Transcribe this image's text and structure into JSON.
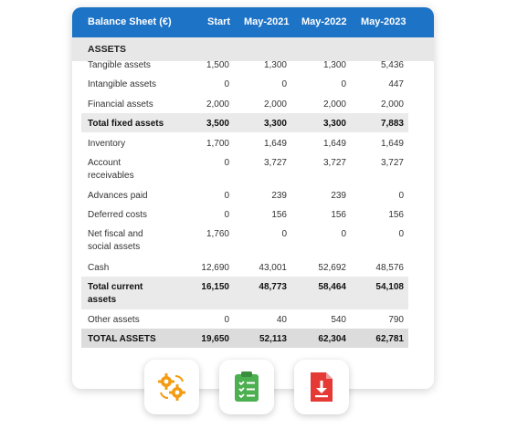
{
  "table": {
    "header": {
      "title": "Balance Sheet (€)",
      "columns": [
        "Start",
        "May-2021",
        "May-2022",
        "May-2023"
      ]
    },
    "section": "ASSETS",
    "rows": [
      {
        "label": "Tangible assets",
        "values": [
          "1,500",
          "1,300",
          "1,300",
          "5,436"
        ]
      },
      {
        "label": "Intangible assets",
        "values": [
          "0",
          "0",
          "0",
          "447"
        ]
      },
      {
        "label": "Financial assets",
        "values": [
          "2,000",
          "2,000",
          "2,000",
          "2,000"
        ]
      },
      {
        "label": "Total fixed assets",
        "values": [
          "3,500",
          "3,300",
          "3,300",
          "7,883"
        ]
      },
      {
        "label": "Inventory",
        "values": [
          "1,700",
          "1,649",
          "1,649",
          "1,649"
        ]
      },
      {
        "label": "Account receivables",
        "values": [
          "0",
          "3,727",
          "3,727",
          "3,727"
        ]
      },
      {
        "label": "Advances paid",
        "values": [
          "0",
          "239",
          "239",
          "0"
        ]
      },
      {
        "label": "Deferred costs",
        "values": [
          "0",
          "156",
          "156",
          "156"
        ]
      },
      {
        "label": "Net fiscal and social assets",
        "values": [
          "1,760",
          "0",
          "0",
          "0"
        ]
      },
      {
        "label": "Cash",
        "values": [
          "12,690",
          "43,001",
          "52,692",
          "48,576"
        ]
      },
      {
        "label": "Total current assets",
        "values": [
          "16,150",
          "48,773",
          "58,464",
          "54,108"
        ]
      },
      {
        "label": "Other assets",
        "values": [
          "0",
          "40",
          "540",
          "790"
        ]
      },
      {
        "label": "TOTAL ASSETS",
        "values": [
          "19,650",
          "52,113",
          "62,304",
          "62,781"
        ]
      }
    ]
  },
  "icons": [
    {
      "name": "gears-icon",
      "color": "#f39c12"
    },
    {
      "name": "checklist-icon",
      "color": "#4caf50"
    },
    {
      "name": "pdf-download-icon",
      "color": "#e53935"
    }
  ],
  "colors": {
    "header": "#1d73c6",
    "section": "#e7e7e7",
    "total_row": "#eaeaea"
  }
}
